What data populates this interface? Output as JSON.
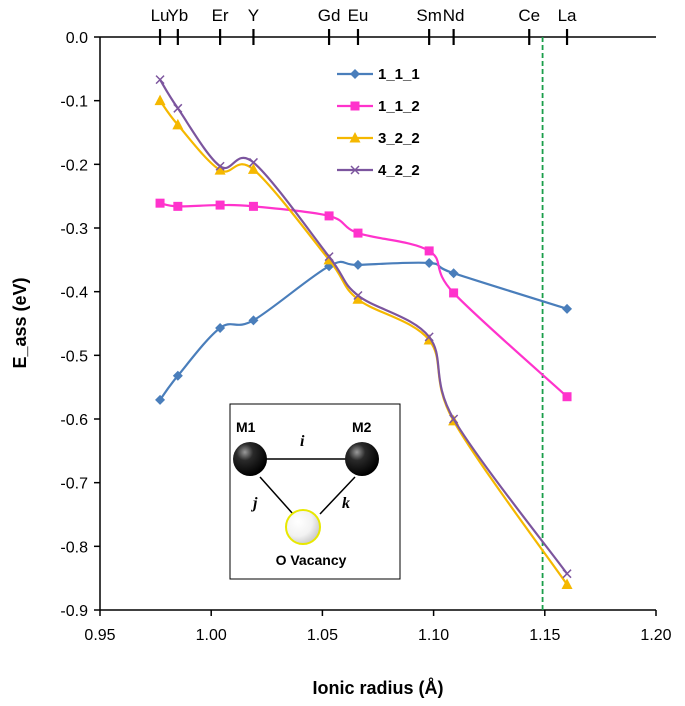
{
  "chart_data": {
    "type": "line",
    "xlabel": "Ionic radius (Å)",
    "ylabel": "E_ass (eV)",
    "xlim": [
      0.95,
      1.2
    ],
    "ylim": [
      -0.9,
      0.0
    ],
    "x_ticks": [
      "0.95",
      "1.00",
      "1.05",
      "1.10",
      "1.15",
      "1.20"
    ],
    "y_ticks": [
      "0.0",
      "-0.1",
      "-0.2",
      "-0.3",
      "-0.4",
      "-0.5",
      "-0.6",
      "-0.7",
      "-0.8",
      "-0.9"
    ],
    "x": [
      0.977,
      0.985,
      1.004,
      1.019,
      1.053,
      1.066,
      1.098,
      1.109,
      1.16
    ],
    "series": [
      {
        "name": "1_1_1",
        "color": "#4a7ebb",
        "marker": "diamond",
        "values": [
          -0.57,
          -0.532,
          -0.457,
          -0.445,
          -0.36,
          -0.358,
          -0.355,
          -0.371,
          -0.427
        ]
      },
      {
        "name": "1_1_2",
        "color": "#ff33cc",
        "marker": "square",
        "values": [
          -0.261,
          -0.266,
          -0.264,
          -0.266,
          -0.281,
          -0.308,
          -0.336,
          -0.402,
          -0.565
        ]
      },
      {
        "name": "3_2_2",
        "color": "#f5b800",
        "marker": "triangle",
        "values": [
          -0.1,
          -0.138,
          -0.209,
          -0.208,
          -0.35,
          -0.412,
          -0.476,
          -0.603,
          -0.86
        ]
      },
      {
        "name": "4_2_2",
        "color": "#7c559e",
        "marker": "x",
        "values": [
          -0.067,
          -0.112,
          -0.203,
          -0.197,
          -0.345,
          -0.406,
          -0.471,
          -0.6,
          -0.843
        ]
      }
    ],
    "top_axis": {
      "labels": [
        "Lu",
        "Yb",
        "Er",
        "Y",
        "Gd",
        "Eu",
        "Sm",
        "Nd",
        "Ce",
        "La"
      ],
      "positions": [
        0.977,
        0.985,
        1.004,
        1.019,
        1.053,
        1.066,
        1.098,
        1.109,
        1.143,
        1.16
      ]
    },
    "reference_line": {
      "x": 1.149,
      "color": "#1a9e4a",
      "style": "dashed"
    },
    "legend_position": "upper-right-inside",
    "inset": {
      "labels": {
        "m1": "M1",
        "m2": "M2",
        "i": "i",
        "j": "j",
        "k": "k",
        "vacancy": "O Vacancy"
      }
    }
  }
}
